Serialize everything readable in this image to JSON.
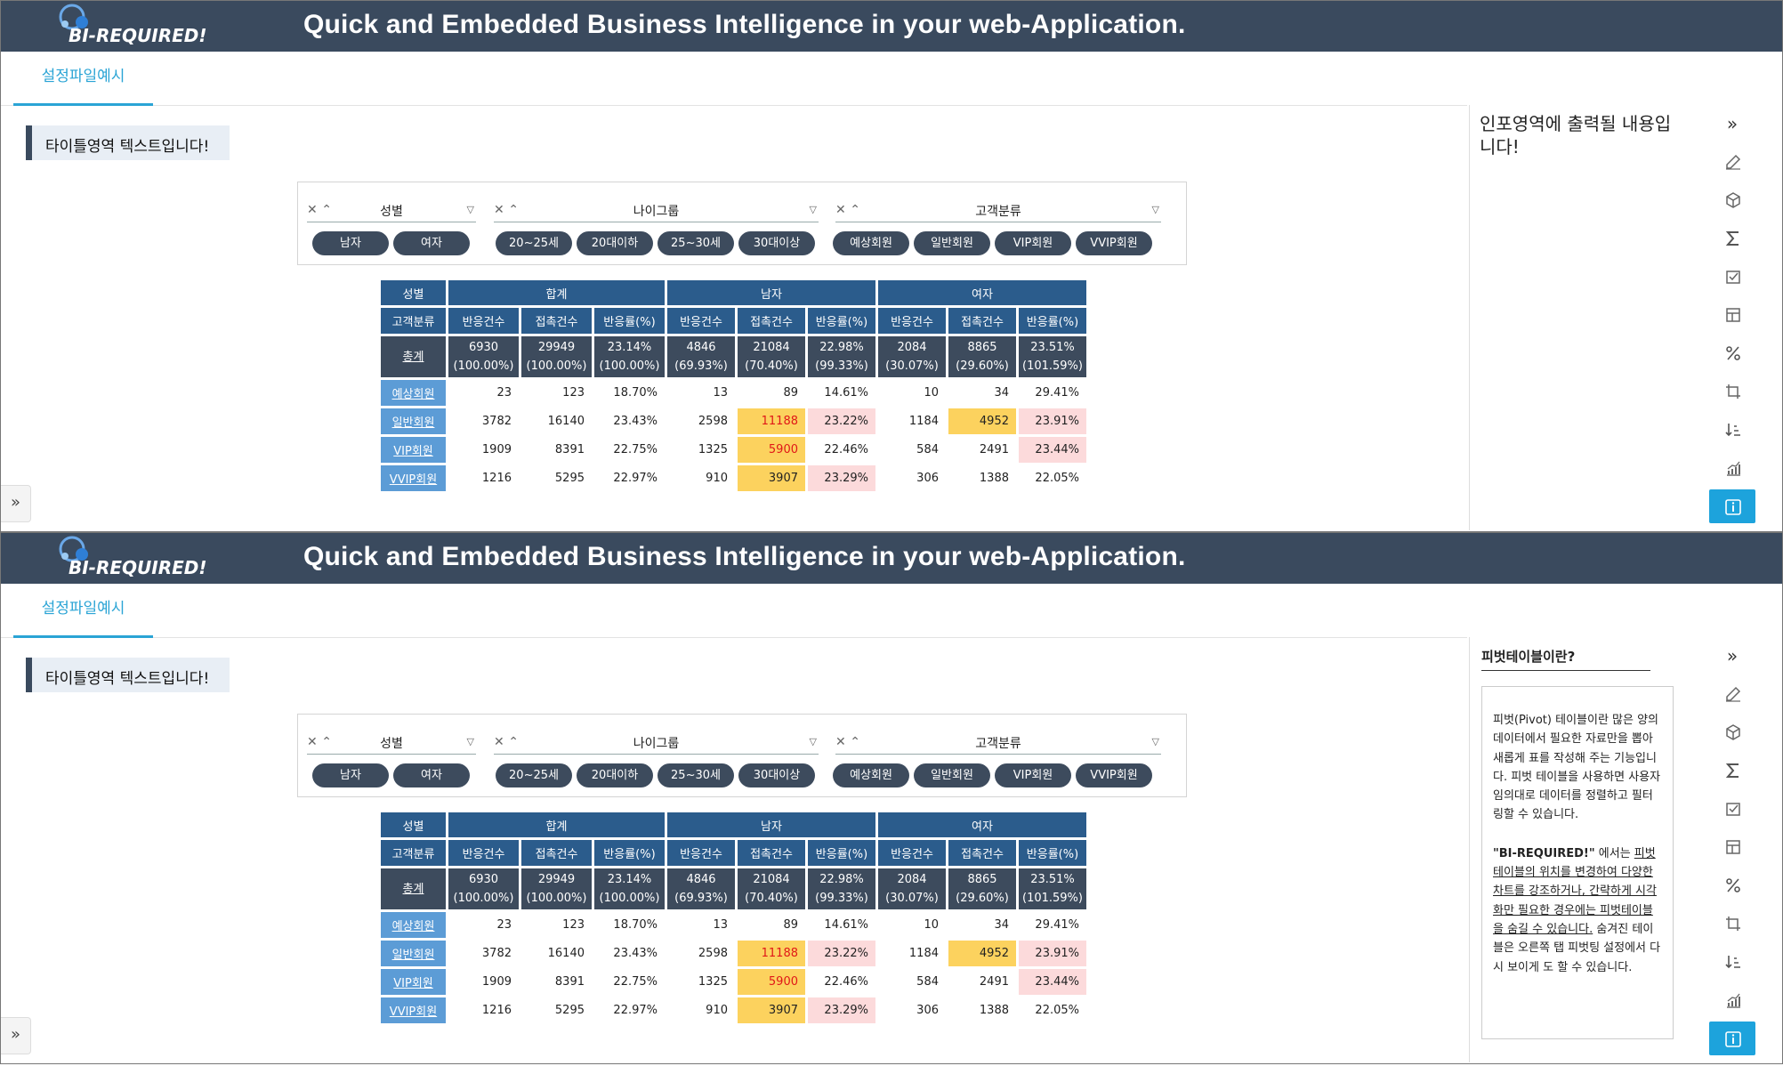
{
  "header": {
    "logo_text": "BI-REQUIRED!",
    "title": "Quick and Embedded Business Intelligence in your web-Application."
  },
  "tabs": [
    {
      "label": "설정파일예시",
      "active": true
    }
  ],
  "page_title": "타이틀영역 텍스트입니다!",
  "filters": [
    {
      "label": "성별",
      "chips": [
        "남자",
        "여자"
      ]
    },
    {
      "label": "나이그룹",
      "chips": [
        "20~25세",
        "20대이하",
        "25~30세",
        "30대이상"
      ]
    },
    {
      "label": "고객분류",
      "chips": [
        "예상회원",
        "일반회원",
        "VIP회원",
        "VVIP회원"
      ]
    }
  ],
  "filter_controls": {
    "clear": "✕",
    "collapse": "⌃",
    "funnel": "▽"
  },
  "pivot": {
    "corner_top": "성별",
    "corner_bottom": "고객분류",
    "groups": [
      "합계",
      "남자",
      "여자"
    ],
    "measures": [
      "반응건수",
      "접촉건수",
      "반응률(%)"
    ],
    "total": {
      "label": "총계",
      "cells": [
        [
          "6930",
          "(100.00%)"
        ],
        [
          "29949",
          "(100.00%)"
        ],
        [
          "23.14%",
          "(100.00%)"
        ],
        [
          "4846",
          "(69.93%)"
        ],
        [
          "21084",
          "(70.40%)"
        ],
        [
          "22.98%",
          "(99.33%)"
        ],
        [
          "2084",
          "(30.07%)"
        ],
        [
          "8865",
          "(29.60%)"
        ],
        [
          "23.51%",
          "(101.59%)"
        ]
      ]
    },
    "rows": [
      {
        "label": "예상회원",
        "values": [
          "23",
          "123",
          "18.70%",
          "13",
          "89",
          "14.61%",
          "10",
          "34",
          "29.41%"
        ]
      },
      {
        "label": "일반회원",
        "values": [
          "3782",
          "16140",
          "23.43%",
          "2598",
          "11188",
          "23.22%",
          "1184",
          "4952",
          "23.91%"
        ]
      },
      {
        "label": "VIP회원",
        "values": [
          "1909",
          "8391",
          "22.75%",
          "1325",
          "5900",
          "22.46%",
          "584",
          "2491",
          "23.44%"
        ]
      },
      {
        "label": "VVIP회원",
        "values": [
          "1216",
          "5295",
          "22.97%",
          "910",
          "3907",
          "23.29%",
          "306",
          "1388",
          "22.05%"
        ]
      }
    ]
  },
  "info_panel_1": {
    "text": "인포영역에 출력될 내용입니다!"
  },
  "info_panel_2": {
    "heading": "피벗테이블이란?",
    "p1": "피벗(Pivot) 테이블이란 많은 양의 데이터에서 필요한 자료만을 뽑아 새롭게 표를 작성해 주는 기능입니다. 피벗 테이블을 사용하면 사용자 임의대로 데이터를 정렬하고 필터링할 수 있습니다.",
    "p2_bold": "\"BI-REQUIRED!\"",
    "p2_a": " 에서는 ",
    "p2_u": "피벗테이블의 위치를 변경하여 다양한 차트를 강조하거나, 간략하게 시각화만 필요한 경우에는 피벗테이블을 숨길 수 있습니다.",
    "p2_b": " 숨겨진 테이블은 오른쪽 탭 피벗팅 설정에서 다시 보이게 도 할 수 있습니다."
  },
  "toolbar": {
    "collapse": "»",
    "icons": [
      "edit-icon",
      "cube-icon",
      "sigma-icon",
      "checklist-icon",
      "layout-icon",
      "percent-icon",
      "crop-icon",
      "sort-desc-icon",
      "chart-icon",
      "info-icon"
    ]
  },
  "left_handle": "»",
  "colors": {
    "header": "#3a4a5e",
    "accent": "#2aa4d5",
    "header_cell": "#2b5c8c",
    "total_cell": "#3d4b5d",
    "row_label": "#5c9cd6",
    "highlight_yellow": "#fcd25e",
    "highlight_pink": "#fcdadb",
    "toolbar_selected": "#1da3dc"
  }
}
